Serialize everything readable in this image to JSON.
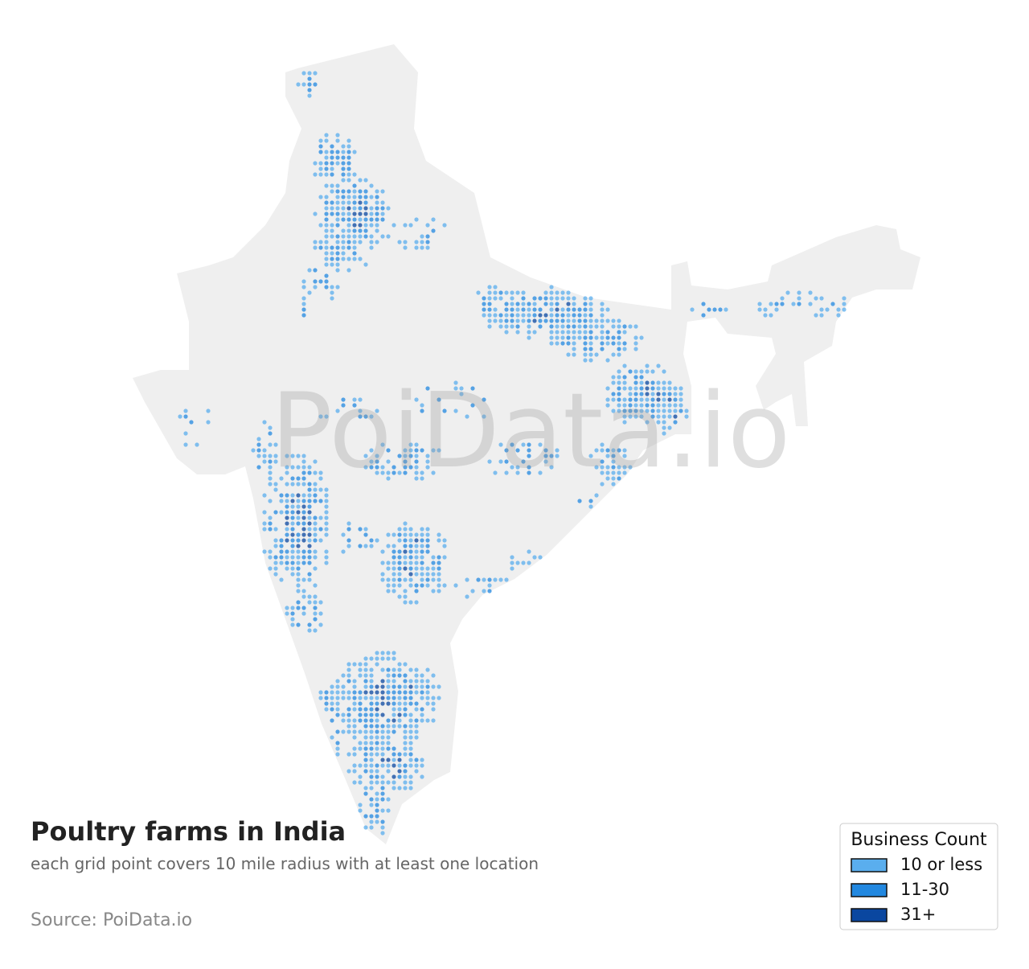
{
  "title": "Poultry farms in India",
  "subtitle": "each grid point covers 10 mile radius with at least one location",
  "source": "Source: PoiData.io",
  "watermark": "PoiData.io",
  "legend": {
    "title": "Business Count",
    "items": [
      {
        "label": "10 or less",
        "color": "#5aaeee"
      },
      {
        "label": "11-30",
        "color": "#2288e0"
      },
      {
        "label": "31+",
        "color": "#0a47a0"
      }
    ]
  }
}
